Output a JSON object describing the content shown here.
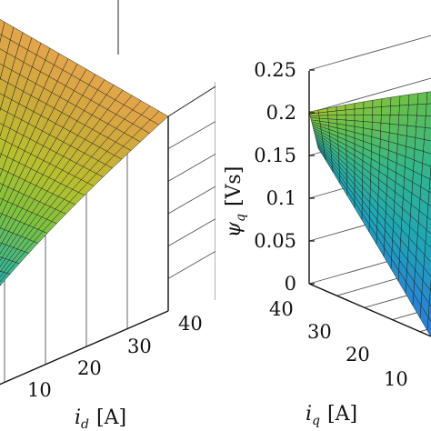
{
  "chart_data": [
    {
      "type": "surface",
      "xlabel_var": "i",
      "xlabel_sub": "d",
      "xlabel_unit": "[A]",
      "x_ticks": [
        "10",
        "20",
        "30",
        "40"
      ],
      "xlim": [
        0,
        40
      ],
      "ylim": [
        0,
        40
      ],
      "grid": true,
      "colormap": "parula",
      "surface_description": "flux surface rising toward a plateau at high i_d"
    },
    {
      "type": "surface",
      "zlabel_var": "ψ",
      "zlabel_sub": "q",
      "zlabel_unit": "[Vs]",
      "z_ticks": [
        "0",
        "0.05",
        "0.1",
        "0.15",
        "0.2",
        "0.25"
      ],
      "zlim": [
        0,
        0.25
      ],
      "ylabel_var": "i",
      "ylabel_sub": "q",
      "ylabel_unit": "[A]",
      "y_ticks": [
        "40",
        "30",
        "20",
        "10"
      ],
      "ylim": [
        0,
        40
      ],
      "grid": true,
      "colormap": "parula",
      "z_at_corner_qmax": 0.2
    }
  ]
}
